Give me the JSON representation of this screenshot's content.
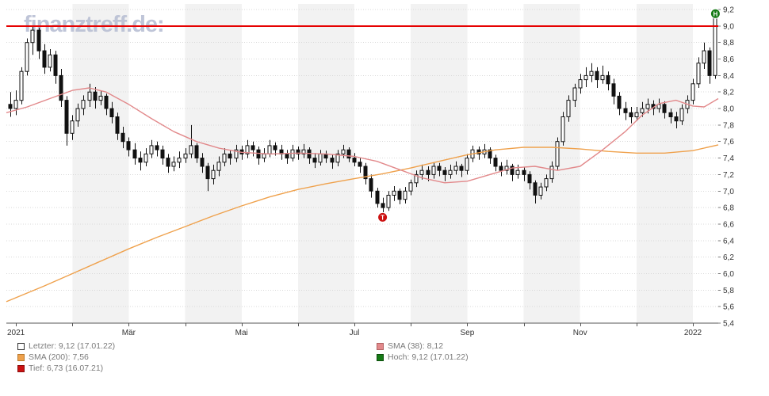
{
  "watermark": {
    "text": "finanztreff.de:"
  },
  "colors": {
    "candle": "#111111",
    "sma200": "#efa14c",
    "sma38": "#e2898b",
    "reference_line": "#e60000",
    "band": "#f2f2f2",
    "grid": "#d9d9d9",
    "axis_text": "#333333",
    "axis_line": "#555555",
    "high_marker": "#157a15",
    "low_marker": "#cc1111"
  },
  "legend": {
    "items": [
      {
        "id": "letzter",
        "label": "Letzter: 9,12 (17.01.22)",
        "color": "#ffffff",
        "border": "#333333"
      },
      {
        "id": "sma200",
        "label": "SMA (200): 7,56",
        "color": "#efa14c",
        "border": "#b97a2f"
      },
      {
        "id": "tief",
        "label": "Tief: 6,73 (16.07.21)",
        "color": "#cc1111",
        "border": "#8a0b0b"
      },
      {
        "id": "sma38",
        "label": "SMA (38): 8,12",
        "color": "#e2898b",
        "border": "#b06363"
      },
      {
        "id": "hoch",
        "label": "Hoch: 9,12 (17.01.22)",
        "color": "#157a15",
        "border": "#0c4d0c"
      }
    ]
  },
  "chart_data": {
    "type": "candlestick",
    "x_unit": "months_from_2021-01",
    "xlim": [
      -0.17,
      12.45
    ],
    "ylim": [
      5.4,
      9.2
    ],
    "grid": true,
    "shaded_months": [
      1,
      3,
      5,
      7,
      9,
      11
    ],
    "summary": {
      "letzter": 9.12,
      "tief": 6.73,
      "hoch": 9.12,
      "sma38_value": 8.12,
      "sma200_value": 7.56
    },
    "reference_line": 9.0,
    "low_marker": {
      "t": 6.5,
      "value": 6.73,
      "label": "T",
      "date": "16.07.21"
    },
    "high_marker": {
      "t": 12.4,
      "value": 9.12,
      "label": "H",
      "date": "17.01.22"
    },
    "x_ticks": [
      {
        "t": 0,
        "label": "2021"
      },
      {
        "t": 2,
        "label": "Mär"
      },
      {
        "t": 4,
        "label": "Mai"
      },
      {
        "t": 6,
        "label": "Jul"
      },
      {
        "t": 8,
        "label": "Sep"
      },
      {
        "t": 10,
        "label": "Nov"
      },
      {
        "t": 12,
        "label": "2022"
      }
    ],
    "y_ticks": [
      {
        "v": 9.2,
        "label": "9,2"
      },
      {
        "v": 9.0,
        "label": "9,0"
      },
      {
        "v": 8.8,
        "label": "8,8"
      },
      {
        "v": 8.6,
        "label": "8,6"
      },
      {
        "v": 8.4,
        "label": "8,4"
      },
      {
        "v": 8.2,
        "label": "8,2"
      },
      {
        "v": 8.0,
        "label": "8,0"
      },
      {
        "v": 7.8,
        "label": "7,8"
      },
      {
        "v": 7.6,
        "label": "7,6"
      },
      {
        "v": 7.4,
        "label": "7,4"
      },
      {
        "v": 7.2,
        "label": "7,2"
      },
      {
        "v": 7.0,
        "label": "7,0"
      },
      {
        "v": 6.8,
        "label": "6,8"
      },
      {
        "v": 6.6,
        "label": "6,6"
      },
      {
        "v": 6.4,
        "label": "6,4"
      },
      {
        "v": 6.2,
        "label": "6,2"
      },
      {
        "v": 6.0,
        "label": "6,0"
      },
      {
        "v": 5.8,
        "label": "5,8"
      },
      {
        "v": 5.6,
        "label": "5,6"
      },
      {
        "v": 5.4,
        "label": "5,4"
      }
    ],
    "candles": [
      [
        -0.1,
        8.05,
        8.2,
        7.9,
        8.0
      ],
      [
        0.0,
        8.0,
        8.22,
        7.92,
        8.1
      ],
      [
        0.1,
        8.1,
        8.5,
        8.05,
        8.45
      ],
      [
        0.2,
        8.45,
        8.85,
        8.4,
        8.8
      ],
      [
        0.3,
        8.8,
        9.0,
        8.65,
        8.95
      ],
      [
        0.4,
        8.95,
        8.98,
        8.6,
        8.7
      ],
      [
        0.5,
        8.7,
        8.78,
        8.42,
        8.5
      ],
      [
        0.6,
        8.5,
        8.72,
        8.45,
        8.65
      ],
      [
        0.7,
        8.65,
        8.7,
        8.3,
        8.4
      ],
      [
        0.8,
        8.4,
        8.48,
        8.02,
        8.1
      ],
      [
        0.9,
        8.1,
        8.15,
        7.55,
        7.7
      ],
      [
        1.0,
        7.7,
        7.92,
        7.62,
        7.85
      ],
      [
        1.1,
        7.85,
        8.06,
        7.78,
        8.0
      ],
      [
        1.2,
        8.0,
        8.16,
        7.92,
        8.1
      ],
      [
        1.3,
        8.1,
        8.3,
        8.02,
        8.2
      ],
      [
        1.4,
        8.2,
        8.26,
        8.0,
        8.1
      ],
      [
        1.5,
        8.1,
        8.22,
        8.04,
        8.15
      ],
      [
        1.6,
        8.15,
        8.18,
        7.92,
        8.0
      ],
      [
        1.7,
        8.0,
        8.08,
        7.82,
        7.9
      ],
      [
        1.8,
        7.9,
        7.95,
        7.62,
        7.7
      ],
      [
        1.9,
        7.7,
        7.78,
        7.52,
        7.6
      ],
      [
        2.0,
        7.6,
        7.65,
        7.42,
        7.5
      ],
      [
        2.1,
        7.5,
        7.58,
        7.32,
        7.4
      ],
      [
        2.2,
        7.4,
        7.48,
        7.25,
        7.35
      ],
      [
        2.3,
        7.35,
        7.52,
        7.3,
        7.45
      ],
      [
        2.4,
        7.45,
        7.62,
        7.4,
        7.55
      ],
      [
        2.5,
        7.55,
        7.6,
        7.42,
        7.5
      ],
      [
        2.6,
        7.5,
        7.55,
        7.32,
        7.4
      ],
      [
        2.7,
        7.4,
        7.45,
        7.22,
        7.3
      ],
      [
        2.8,
        7.3,
        7.42,
        7.24,
        7.35
      ],
      [
        2.9,
        7.35,
        7.48,
        7.28,
        7.4
      ],
      [
        3.0,
        7.4,
        7.52,
        7.34,
        7.45
      ],
      [
        3.1,
        7.45,
        7.8,
        7.4,
        7.55
      ],
      [
        3.2,
        7.55,
        7.58,
        7.34,
        7.4
      ],
      [
        3.3,
        7.4,
        7.46,
        7.22,
        7.3
      ],
      [
        3.4,
        7.3,
        7.34,
        7.0,
        7.15
      ],
      [
        3.5,
        7.15,
        7.32,
        7.08,
        7.25
      ],
      [
        3.6,
        7.25,
        7.42,
        7.18,
        7.35
      ],
      [
        3.7,
        7.35,
        7.52,
        7.3,
        7.45
      ],
      [
        3.8,
        7.45,
        7.5,
        7.32,
        7.4
      ],
      [
        3.9,
        7.4,
        7.56,
        7.35,
        7.5
      ],
      [
        4.0,
        7.5,
        7.55,
        7.38,
        7.45
      ],
      [
        4.1,
        7.45,
        7.62,
        7.4,
        7.55
      ],
      [
        4.2,
        7.55,
        7.6,
        7.42,
        7.5
      ],
      [
        4.3,
        7.5,
        7.54,
        7.32,
        7.4
      ],
      [
        4.4,
        7.4,
        7.52,
        7.35,
        7.45
      ],
      [
        4.5,
        7.45,
        7.62,
        7.41,
        7.55
      ],
      [
        4.6,
        7.55,
        7.59,
        7.43,
        7.5
      ],
      [
        4.7,
        7.5,
        7.56,
        7.38,
        7.45
      ],
      [
        4.8,
        7.45,
        7.5,
        7.33,
        7.4
      ],
      [
        4.9,
        7.4,
        7.56,
        7.36,
        7.5
      ],
      [
        5.0,
        7.5,
        7.54,
        7.38,
        7.45
      ],
      [
        5.1,
        7.45,
        7.57,
        7.4,
        7.5
      ],
      [
        5.2,
        7.5,
        7.53,
        7.33,
        7.4
      ],
      [
        5.3,
        7.4,
        7.46,
        7.28,
        7.35
      ],
      [
        5.4,
        7.35,
        7.5,
        7.31,
        7.45
      ],
      [
        5.5,
        7.45,
        7.49,
        7.34,
        7.4
      ],
      [
        5.6,
        7.4,
        7.44,
        7.27,
        7.35
      ],
      [
        5.7,
        7.35,
        7.5,
        7.3,
        7.45
      ],
      [
        5.8,
        7.45,
        7.56,
        7.4,
        7.5
      ],
      [
        5.9,
        7.5,
        7.53,
        7.35,
        7.4
      ],
      [
        6.0,
        7.4,
        7.46,
        7.3,
        7.35
      ],
      [
        6.1,
        7.35,
        7.4,
        7.22,
        7.3
      ],
      [
        6.2,
        7.3,
        7.34,
        7.08,
        7.15
      ],
      [
        6.3,
        7.15,
        7.2,
        6.92,
        7.0
      ],
      [
        6.4,
        7.0,
        7.04,
        6.8,
        6.85
      ],
      [
        6.5,
        6.85,
        6.92,
        6.73,
        6.8
      ],
      [
        6.6,
        6.8,
        7.0,
        6.76,
        6.95
      ],
      [
        6.7,
        6.95,
        7.06,
        6.88,
        7.0
      ],
      [
        6.8,
        7.0,
        7.03,
        6.84,
        6.9
      ],
      [
        6.9,
        6.9,
        7.05,
        6.85,
        7.0
      ],
      [
        7.0,
        7.0,
        7.14,
        6.95,
        7.1
      ],
      [
        7.1,
        7.1,
        7.25,
        7.05,
        7.2
      ],
      [
        7.2,
        7.2,
        7.32,
        7.14,
        7.25
      ],
      [
        7.3,
        7.25,
        7.3,
        7.12,
        7.2
      ],
      [
        7.4,
        7.2,
        7.35,
        7.15,
        7.3
      ],
      [
        7.5,
        7.3,
        7.34,
        7.18,
        7.25
      ],
      [
        7.6,
        7.25,
        7.29,
        7.12,
        7.2
      ],
      [
        7.7,
        7.2,
        7.32,
        7.15,
        7.25
      ],
      [
        7.8,
        7.25,
        7.36,
        7.2,
        7.3
      ],
      [
        7.9,
        7.3,
        7.33,
        7.17,
        7.25
      ],
      [
        8.0,
        7.25,
        7.45,
        7.2,
        7.4
      ],
      [
        8.1,
        7.4,
        7.55,
        7.35,
        7.5
      ],
      [
        8.2,
        7.5,
        7.54,
        7.38,
        7.45
      ],
      [
        8.3,
        7.45,
        7.57,
        7.4,
        7.5
      ],
      [
        8.4,
        7.5,
        7.53,
        7.33,
        7.4
      ],
      [
        8.5,
        7.4,
        7.44,
        7.24,
        7.3
      ],
      [
        8.6,
        7.3,
        7.35,
        7.18,
        7.25
      ],
      [
        8.7,
        7.25,
        7.38,
        7.2,
        7.3
      ],
      [
        8.8,
        7.3,
        7.33,
        7.12,
        7.2
      ],
      [
        8.9,
        7.2,
        7.32,
        7.15,
        7.25
      ],
      [
        9.0,
        7.25,
        7.29,
        7.12,
        7.2
      ],
      [
        9.1,
        7.2,
        7.24,
        7.02,
        7.1
      ],
      [
        9.2,
        7.1,
        7.13,
        6.85,
        6.95
      ],
      [
        9.3,
        6.95,
        7.1,
        6.9,
        7.05
      ],
      [
        9.4,
        7.05,
        7.2,
        7.0,
        7.15
      ],
      [
        9.5,
        7.15,
        7.36,
        7.1,
        7.3
      ],
      [
        9.6,
        7.3,
        7.65,
        7.26,
        7.6
      ],
      [
        9.7,
        7.6,
        7.96,
        7.55,
        7.9
      ],
      [
        9.8,
        7.9,
        8.16,
        7.84,
        8.1
      ],
      [
        9.9,
        8.1,
        8.3,
        8.02,
        8.25
      ],
      [
        10.0,
        8.25,
        8.42,
        8.18,
        8.35
      ],
      [
        10.1,
        8.35,
        8.5,
        8.26,
        8.4
      ],
      [
        10.2,
        8.4,
        8.55,
        8.32,
        8.45
      ],
      [
        10.3,
        8.45,
        8.5,
        8.25,
        8.35
      ],
      [
        10.4,
        8.35,
        8.52,
        8.3,
        8.4
      ],
      [
        10.5,
        8.4,
        8.45,
        8.22,
        8.3
      ],
      [
        10.6,
        8.3,
        8.36,
        8.05,
        8.15
      ],
      [
        10.7,
        8.15,
        8.2,
        7.92,
        8.0
      ],
      [
        10.8,
        8.0,
        8.08,
        7.86,
        7.95
      ],
      [
        10.9,
        7.95,
        8.02,
        7.82,
        7.9
      ],
      [
        11.0,
        7.9,
        8.02,
        7.85,
        7.95
      ],
      [
        11.1,
        7.95,
        8.08,
        7.9,
        8.0
      ],
      [
        11.2,
        8.0,
        8.12,
        7.94,
        8.05
      ],
      [
        11.3,
        8.05,
        8.1,
        7.92,
        8.0
      ],
      [
        11.4,
        8.0,
        8.12,
        7.95,
        8.05
      ],
      [
        11.5,
        8.05,
        8.09,
        7.88,
        7.95
      ],
      [
        11.6,
        7.95,
        8.0,
        7.82,
        7.9
      ],
      [
        11.7,
        7.9,
        7.96,
        7.76,
        7.85
      ],
      [
        11.8,
        7.85,
        8.05,
        7.8,
        8.0
      ],
      [
        11.9,
        8.0,
        8.16,
        7.94,
        8.1
      ],
      [
        12.0,
        8.1,
        8.36,
        8.05,
        8.3
      ],
      [
        12.1,
        8.3,
        8.62,
        8.25,
        8.55
      ],
      [
        12.2,
        8.55,
        8.8,
        8.48,
        8.7
      ],
      [
        12.3,
        8.7,
        8.74,
        8.3,
        8.4
      ],
      [
        12.4,
        8.4,
        9.12,
        8.36,
        9.12
      ]
    ],
    "sma200": [
      [
        -0.17,
        5.66
      ],
      [
        0.5,
        5.85
      ],
      [
        1,
        6.0
      ],
      [
        1.5,
        6.15
      ],
      [
        2,
        6.3
      ],
      [
        2.5,
        6.44
      ],
      [
        3,
        6.57
      ],
      [
        3.5,
        6.7
      ],
      [
        4,
        6.82
      ],
      [
        4.5,
        6.93
      ],
      [
        5,
        7.02
      ],
      [
        5.5,
        7.09
      ],
      [
        6,
        7.15
      ],
      [
        6.5,
        7.21
      ],
      [
        7,
        7.28
      ],
      [
        7.5,
        7.36
      ],
      [
        8,
        7.44
      ],
      [
        8.5,
        7.5
      ],
      [
        9,
        7.53
      ],
      [
        9.5,
        7.53
      ],
      [
        10,
        7.51
      ],
      [
        10.5,
        7.48
      ],
      [
        11,
        7.46
      ],
      [
        11.5,
        7.46
      ],
      [
        12,
        7.49
      ],
      [
        12.45,
        7.56
      ]
    ],
    "sma38": [
      [
        -0.17,
        7.95
      ],
      [
        0.2,
        8.02
      ],
      [
        0.6,
        8.12
      ],
      [
        1.0,
        8.22
      ],
      [
        1.3,
        8.25
      ],
      [
        1.6,
        8.2
      ],
      [
        2.0,
        8.05
      ],
      [
        2.4,
        7.88
      ],
      [
        2.8,
        7.72
      ],
      [
        3.2,
        7.6
      ],
      [
        3.6,
        7.52
      ],
      [
        4.0,
        7.47
      ],
      [
        4.5,
        7.45
      ],
      [
        5.0,
        7.46
      ],
      [
        5.5,
        7.45
      ],
      [
        6.0,
        7.42
      ],
      [
        6.4,
        7.36
      ],
      [
        6.8,
        7.26
      ],
      [
        7.2,
        7.16
      ],
      [
        7.6,
        7.1
      ],
      [
        8.0,
        7.12
      ],
      [
        8.4,
        7.2
      ],
      [
        8.8,
        7.28
      ],
      [
        9.2,
        7.3
      ],
      [
        9.6,
        7.25
      ],
      [
        10.0,
        7.3
      ],
      [
        10.4,
        7.5
      ],
      [
        10.8,
        7.72
      ],
      [
        11.1,
        7.92
      ],
      [
        11.4,
        8.06
      ],
      [
        11.7,
        8.1
      ],
      [
        12.0,
        8.03
      ],
      [
        12.2,
        8.02
      ],
      [
        12.45,
        8.12
      ]
    ]
  }
}
